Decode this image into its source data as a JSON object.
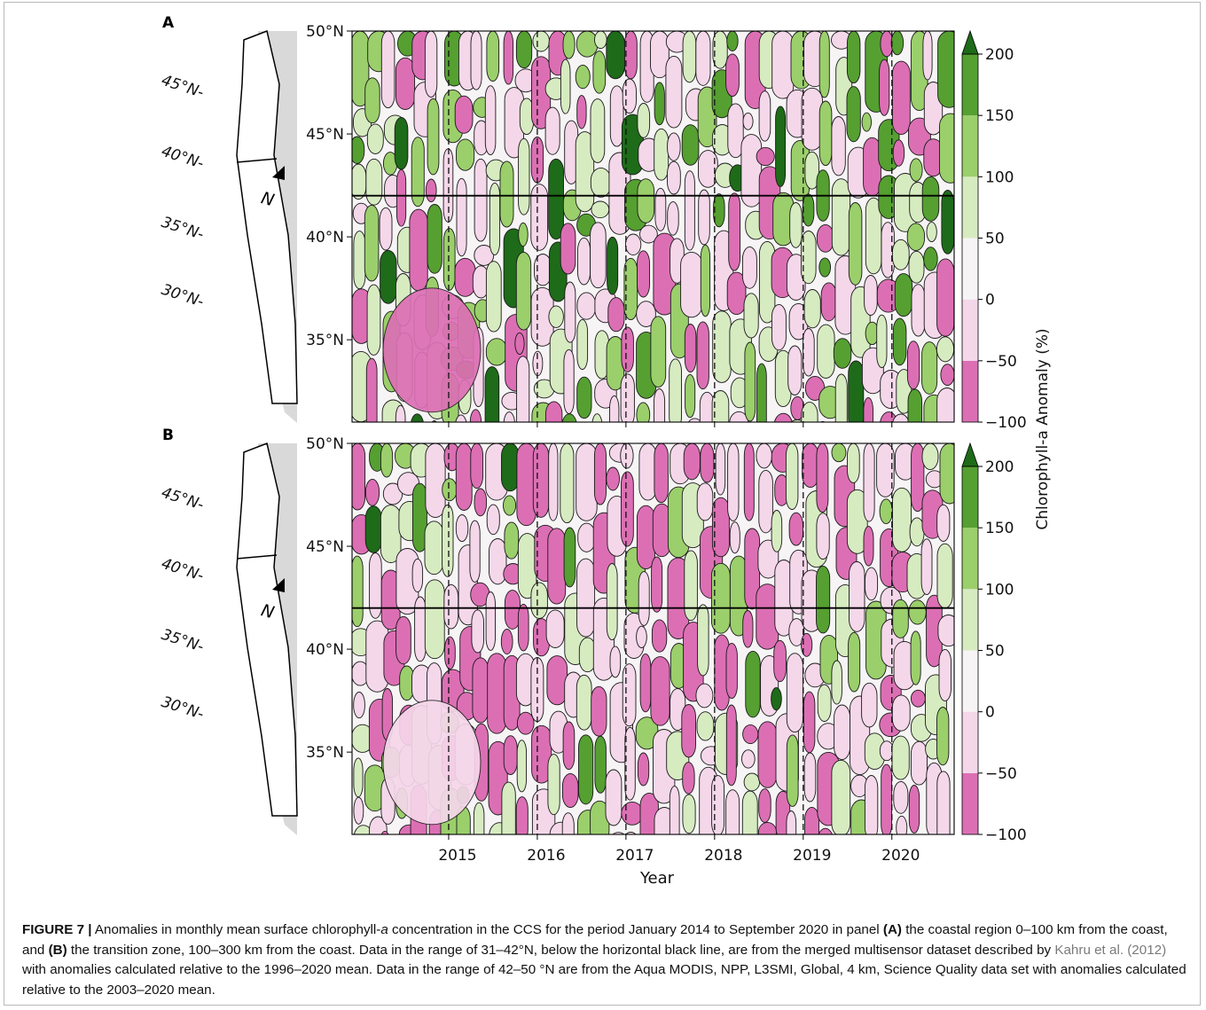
{
  "colors": {
    "neg_strong": "#dc6fb4",
    "neg_light": "#f5d7ea",
    "neutral": "#f7f4f5",
    "pos_light": "#d7ebc1",
    "pos_mid": "#9bcf6b",
    "pos_strong": "#55a031",
    "pos_max": "#1e6b19",
    "land": "#d9d9d9"
  },
  "panels": [
    {
      "letter": "A",
      "map_latitudes": [
        "45°N",
        "40°N",
        "35°N",
        "30°N"
      ],
      "north_label": "N"
    },
    {
      "letter": "B",
      "map_latitudes": [
        "45°N",
        "40°N",
        "35°N",
        "30°N"
      ],
      "north_label": "N"
    }
  ],
  "chart_data": [
    {
      "panel": "A",
      "type": "heatmap",
      "title": "",
      "xlabel": "",
      "ylabel": "",
      "x_ticks": [
        "2015",
        "2016",
        "2017",
        "2018",
        "2019",
        "2020"
      ],
      "x_range": [
        "2014-01",
        "2020-09"
      ],
      "y_ticks": [
        "35°N",
        "40°N",
        "45°N",
        "50°N"
      ],
      "ylim": [
        31,
        50
      ],
      "boundary_latitude": 42,
      "year_markers": [
        "2015",
        "2016",
        "2017",
        "2018",
        "2019",
        "2020"
      ],
      "colorbar": {
        "label": "Chlorophyll-a Anomaly (%)",
        "ticks": [
          "200",
          "150",
          "100",
          "50",
          "0",
          "−50",
          "−100"
        ],
        "range": [
          -100,
          200
        ],
        "extend": "max"
      }
    },
    {
      "panel": "B",
      "type": "heatmap",
      "title": "",
      "xlabel": "Year",
      "ylabel": "",
      "x_ticks": [
        "2015",
        "2016",
        "2017",
        "2018",
        "2019",
        "2020"
      ],
      "x_range": [
        "2014-01",
        "2020-09"
      ],
      "y_ticks": [
        "35°N",
        "40°N",
        "45°N",
        "50°N"
      ],
      "ylim": [
        31,
        50
      ],
      "boundary_latitude": 42,
      "year_markers": [
        "2015",
        "2016",
        "2017",
        "2018",
        "2019",
        "2020"
      ],
      "colorbar": {
        "label": "",
        "ticks": [
          "200",
          "150",
          "100",
          "50",
          "0",
          "−50",
          "−100"
        ],
        "range": [
          -100,
          200
        ],
        "extend": "max"
      }
    }
  ],
  "caption": {
    "figure_label": "FIGURE 7 |",
    "part1": " Anomalies in monthly mean surface chlorophyll-",
    "italic_a": "a",
    "part2": " concentration in the CCS for the period January 2014 to September 2020 in panel ",
    "bold_a": "(A)",
    "part3": " the coastal region 0–100 km from the coast, and ",
    "bold_b": "(B)",
    "part4": " the transition zone, 100–300 km from the coast. Data in the range of 31–42°N, below the horizontal black line, are from the merged multisensor dataset described by ",
    "ref": "Kahru et al. (2012)",
    "part5": " with anomalies calculated relative to the 1996–2020 mean. Data in the range of 42–50 °N are from the Aqua MODIS, NPP, L3SMI, Global, 4 km, Science Quality data set with anomalies calculated relative to the 2003–2020 mean."
  }
}
